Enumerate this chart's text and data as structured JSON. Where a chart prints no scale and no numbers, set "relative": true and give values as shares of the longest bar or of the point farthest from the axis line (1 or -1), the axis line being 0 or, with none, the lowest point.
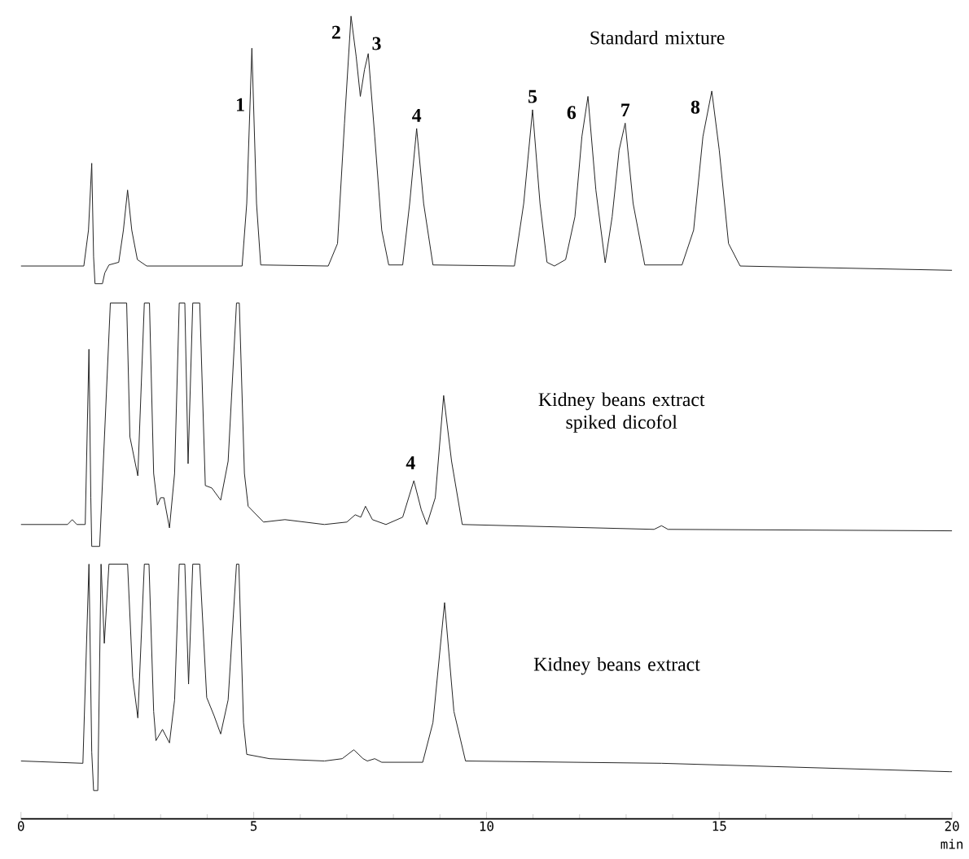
{
  "chart_data": [
    {
      "type": "line",
      "relative": true,
      "xlim": [
        0,
        20
      ],
      "tick_labels": false,
      "series": [
        {
          "name": "Standard mixture",
          "color": "#222222",
          "x": [
            0,
            1.35,
            1.45,
            1.52,
            1.56,
            1.59,
            1.75,
            1.8,
            1.89,
            2.1,
            2.2,
            2.29,
            2.38,
            2.5,
            2.7,
            4.75,
            4.85,
            4.96,
            5.06,
            5.15,
            6.6,
            6.8,
            6.95,
            7.09,
            7.2,
            7.29,
            7.38,
            7.46,
            7.6,
            7.75,
            7.9,
            8.2,
            8.35,
            8.5,
            8.65,
            8.85,
            10.6,
            10.8,
            10.99,
            11.15,
            11.3,
            11.46,
            11.7,
            11.9,
            12.05,
            12.18,
            12.35,
            12.55,
            12.7,
            12.85,
            12.98,
            13.15,
            13.4,
            14.2,
            14.45,
            14.65,
            14.84,
            15.0,
            15.2,
            15.45,
            20
          ],
          "values": [
            0.066,
            0.066,
            0.2,
            0.45,
            0.1,
            0,
            0,
            0.04,
            0.07,
            0.08,
            0.2,
            0.35,
            0.2,
            0.09,
            0.066,
            0.066,
            0.3,
            0.88,
            0.3,
            0.07,
            0.066,
            0.15,
            0.6,
            1.0,
            0.85,
            0.7,
            0.8,
            0.86,
            0.55,
            0.2,
            0.07,
            0.07,
            0.3,
            0.58,
            0.3,
            0.07,
            0.066,
            0.3,
            0.65,
            0.3,
            0.08,
            0.066,
            0.09,
            0.25,
            0.55,
            0.7,
            0.35,
            0.078,
            0.25,
            0.5,
            0.6,
            0.3,
            0.07,
            0.07,
            0.2,
            0.55,
            0.72,
            0.5,
            0.15,
            0.066,
            0.05
          ]
        }
      ],
      "annotations": [
        {
          "text": "1",
          "x": 4.96,
          "y": 0.88
        },
        {
          "text": "2",
          "x": 7.09,
          "y": 1.0
        },
        {
          "text": "3",
          "x": 7.46,
          "y": 0.86
        },
        {
          "text": "4",
          "x": 8.5,
          "y": 0.58
        },
        {
          "text": "5",
          "x": 10.99,
          "y": 0.65
        },
        {
          "text": "6",
          "x": 12.18,
          "y": 0.7
        },
        {
          "text": "7",
          "x": 12.98,
          "y": 0.6
        },
        {
          "text": "8",
          "x": 14.84,
          "y": 0.72
        }
      ]
    },
    {
      "type": "line",
      "relative": true,
      "xlim": [
        0,
        20
      ],
      "tick_labels": false,
      "series": [
        {
          "name": "Kidney beans extract spiked dicofol",
          "color": "#222222",
          "x": [
            0,
            1.0,
            1.1,
            1.2,
            1.38,
            1.46,
            1.5,
            1.52,
            1.69,
            1.92,
            2.27,
            2.34,
            2.51,
            2.65,
            2.76,
            2.85,
            2.93,
            3.0,
            3.07,
            3.19,
            3.3,
            3.4,
            3.52,
            3.59,
            3.69,
            3.84,
            3.96,
            4.1,
            4.29,
            4.45,
            4.63,
            4.69,
            4.8,
            4.88,
            5.21,
            5.67,
            6.52,
            7.0,
            7.18,
            7.3,
            7.4,
            7.55,
            7.84,
            8.2,
            8.44,
            8.6,
            8.72,
            8.9,
            9.08,
            9.25,
            9.48,
            13.6,
            13.76,
            13.9,
            20
          ],
          "values": [
            0.09,
            0.09,
            0.11,
            0.09,
            0.09,
            0.81,
            0.2,
            0,
            0,
            1.0,
            1.0,
            0.45,
            0.29,
            1.0,
            1.0,
            0.3,
            0.17,
            0.2,
            0.2,
            0.076,
            0.3,
            1.0,
            1.0,
            0.34,
            1.0,
            1.0,
            0.25,
            0.24,
            0.19,
            0.35,
            1.0,
            1.0,
            0.3,
            0.165,
            0.1,
            0.11,
            0.09,
            0.1,
            0.13,
            0.12,
            0.165,
            0.11,
            0.09,
            0.12,
            0.27,
            0.15,
            0.09,
            0.2,
            0.62,
            0.35,
            0.09,
            0.07,
            0.085,
            0.07,
            0.064
          ]
        }
      ],
      "annotations": [
        {
          "text": "4",
          "x": 8.44,
          "y": 0.27
        }
      ]
    },
    {
      "type": "line",
      "relative": true,
      "xlim": [
        0,
        20
      ],
      "xticks": [
        0,
        5,
        10,
        15,
        20
      ],
      "xlabel": "min",
      "tick_labels": "x",
      "series": [
        {
          "name": "Kidney beans extract",
          "color": "#222222",
          "x": [
            0,
            1.33,
            1.46,
            1.52,
            1.56,
            1.65,
            1.72,
            1.79,
            1.89,
            2.29,
            2.4,
            2.51,
            2.65,
            2.75,
            2.85,
            2.9,
            3.04,
            3.19,
            3.3,
            3.4,
            3.52,
            3.6,
            3.69,
            3.84,
            3.99,
            4.15,
            4.29,
            4.45,
            4.63,
            4.68,
            4.78,
            4.85,
            5.34,
            6.52,
            6.9,
            7.15,
            7.35,
            7.44,
            7.6,
            7.75,
            8.63,
            8.85,
            9.1,
            9.3,
            9.55,
            13.76,
            19.95,
            20
          ],
          "values": [
            0.227,
            0.218,
            1.0,
            0.262,
            0.111,
            0.111,
            1.0,
            0.689,
            1.0,
            1.0,
            0.556,
            0.396,
            1.0,
            1.0,
            0.422,
            0.307,
            0.351,
            0.298,
            0.467,
            1.0,
            1.0,
            0.529,
            1.0,
            1.0,
            0.476,
            0.404,
            0.333,
            0.467,
            1.0,
            1.0,
            0.378,
            0.253,
            0.236,
            0.227,
            0.236,
            0.271,
            0.236,
            0.227,
            0.236,
            0.222,
            0.222,
            0.378,
            0.849,
            0.422,
            0.227,
            0.218,
            0.185,
            0.185
          ]
        }
      ]
    }
  ]
}
